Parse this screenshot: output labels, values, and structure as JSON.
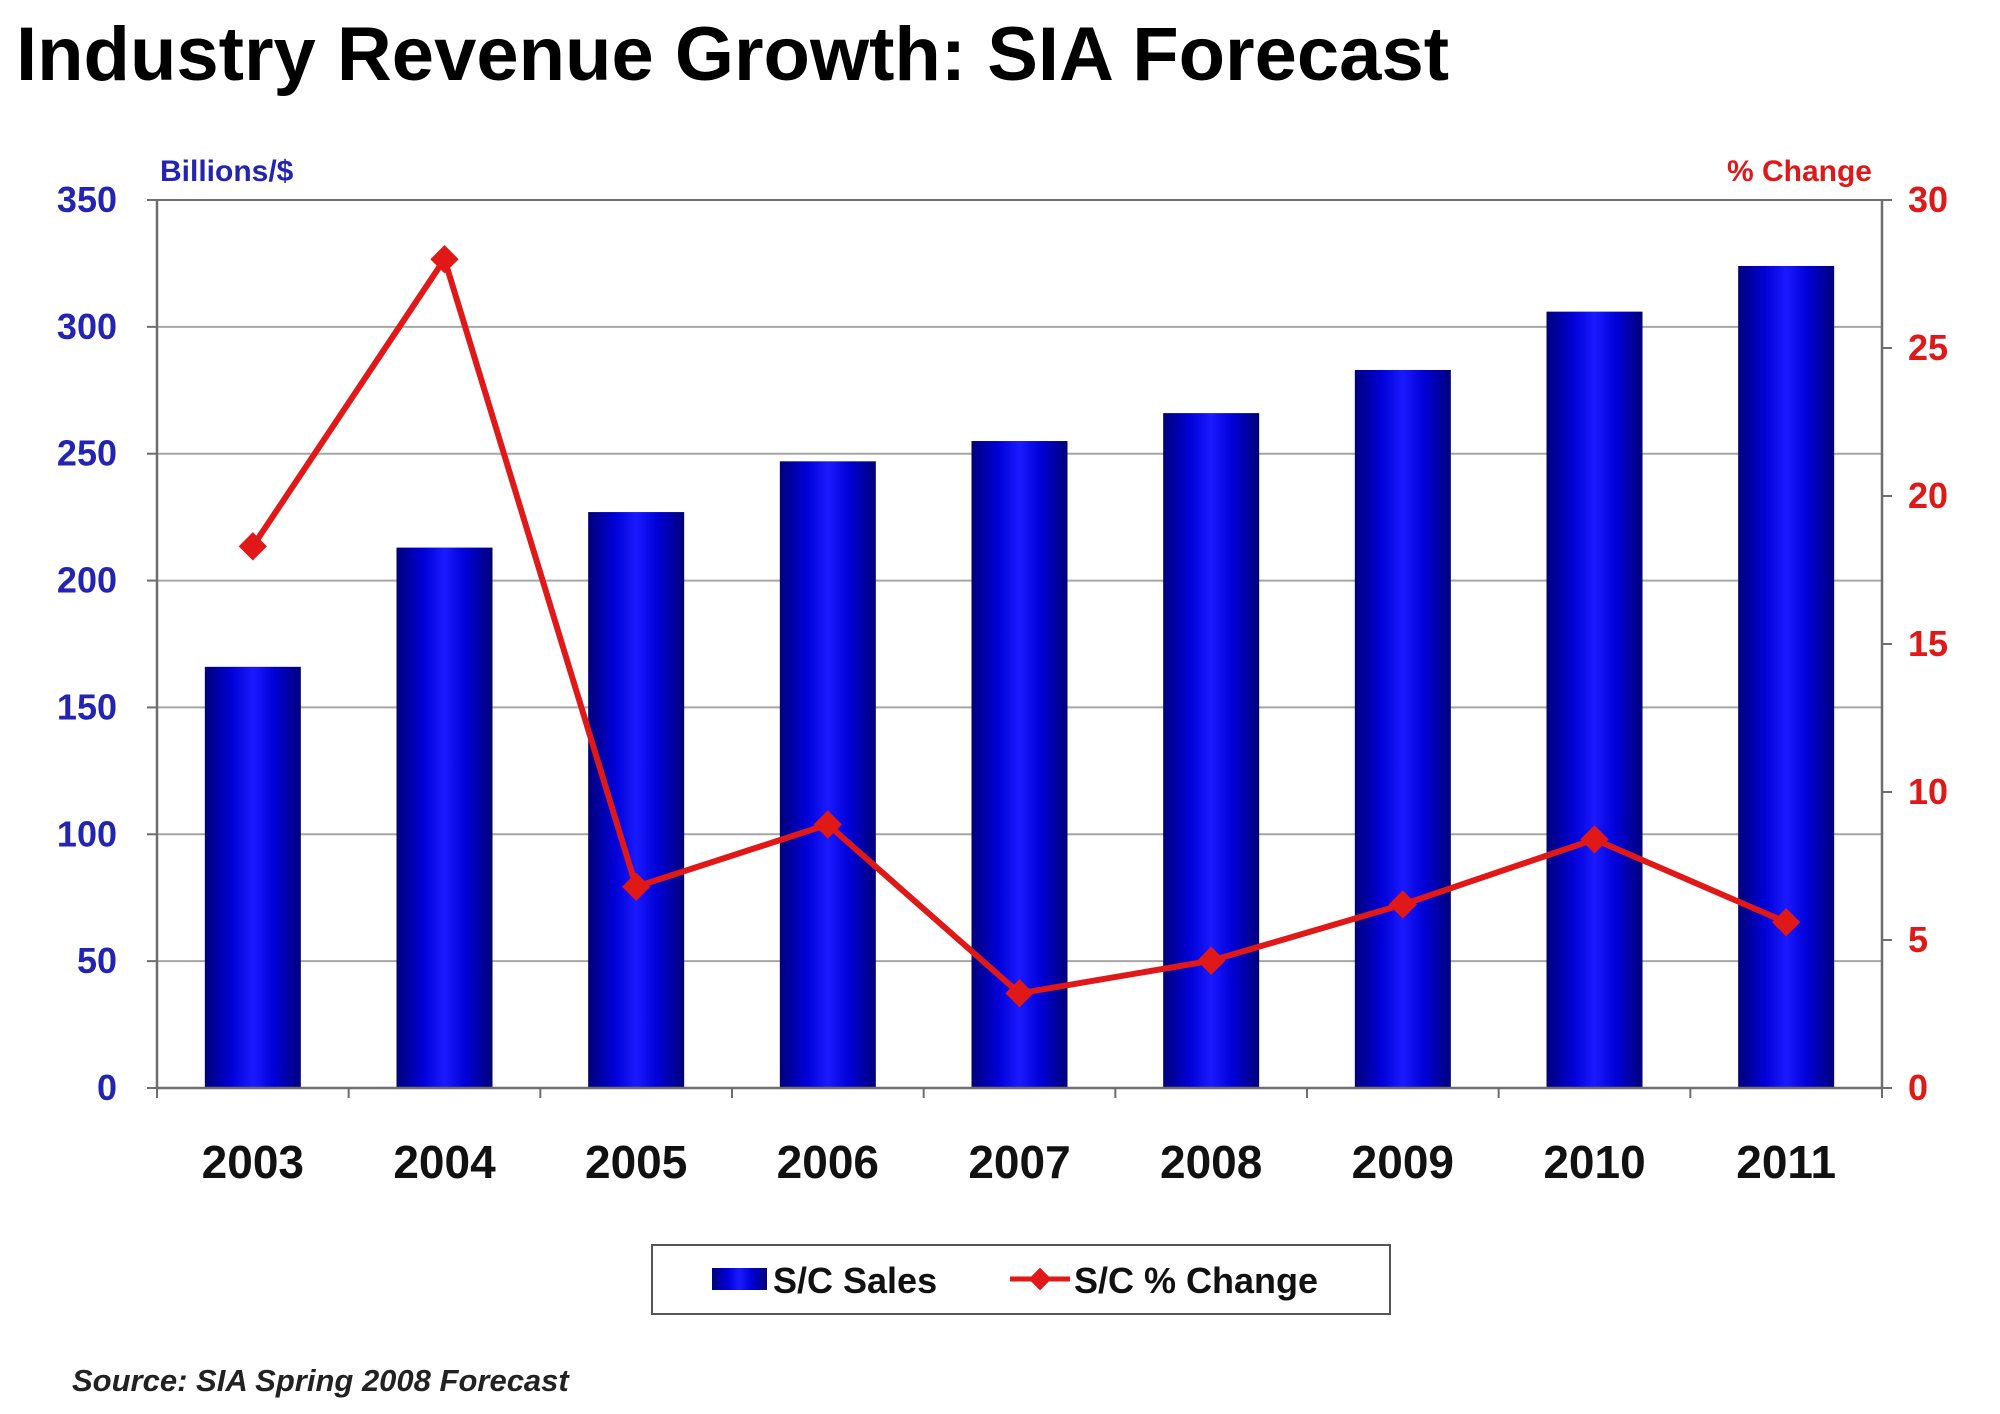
{
  "chart_data": {
    "type": "bar",
    "title": "Industry Revenue Growth: SIA Forecast",
    "source": "Source: SIA Spring 2008 Forecast",
    "categories": [
      "2003",
      "2004",
      "2005",
      "2006",
      "2007",
      "2008",
      "2009",
      "2010",
      "2011"
    ],
    "left_axis": {
      "unit_label": "Billions/$",
      "ylim": [
        0,
        350
      ],
      "ticks": [
        "0",
        "50",
        "100",
        "150",
        "200",
        "250",
        "300",
        "350"
      ],
      "color": "#2323b4"
    },
    "right_axis": {
      "unit_label": "% Change",
      "ylim": [
        0,
        30
      ],
      "ticks": [
        "0",
        "5",
        "10",
        "15",
        "20",
        "25",
        "30"
      ],
      "color": "#e01818"
    },
    "series": [
      {
        "name": "S/C Sales",
        "type": "bar",
        "axis": "left",
        "color": "#0000d0",
        "values": [
          166,
          213,
          227,
          247,
          255,
          266,
          283,
          306,
          324
        ]
      },
      {
        "name": "S/C % Change",
        "type": "line",
        "axis": "right",
        "color": "#e01818",
        "marker": "diamond",
        "values": [
          18.3,
          28.0,
          6.8,
          8.9,
          3.2,
          4.3,
          6.2,
          8.4,
          5.6
        ]
      }
    ],
    "grid": true,
    "legend_position": "bottom-center"
  }
}
